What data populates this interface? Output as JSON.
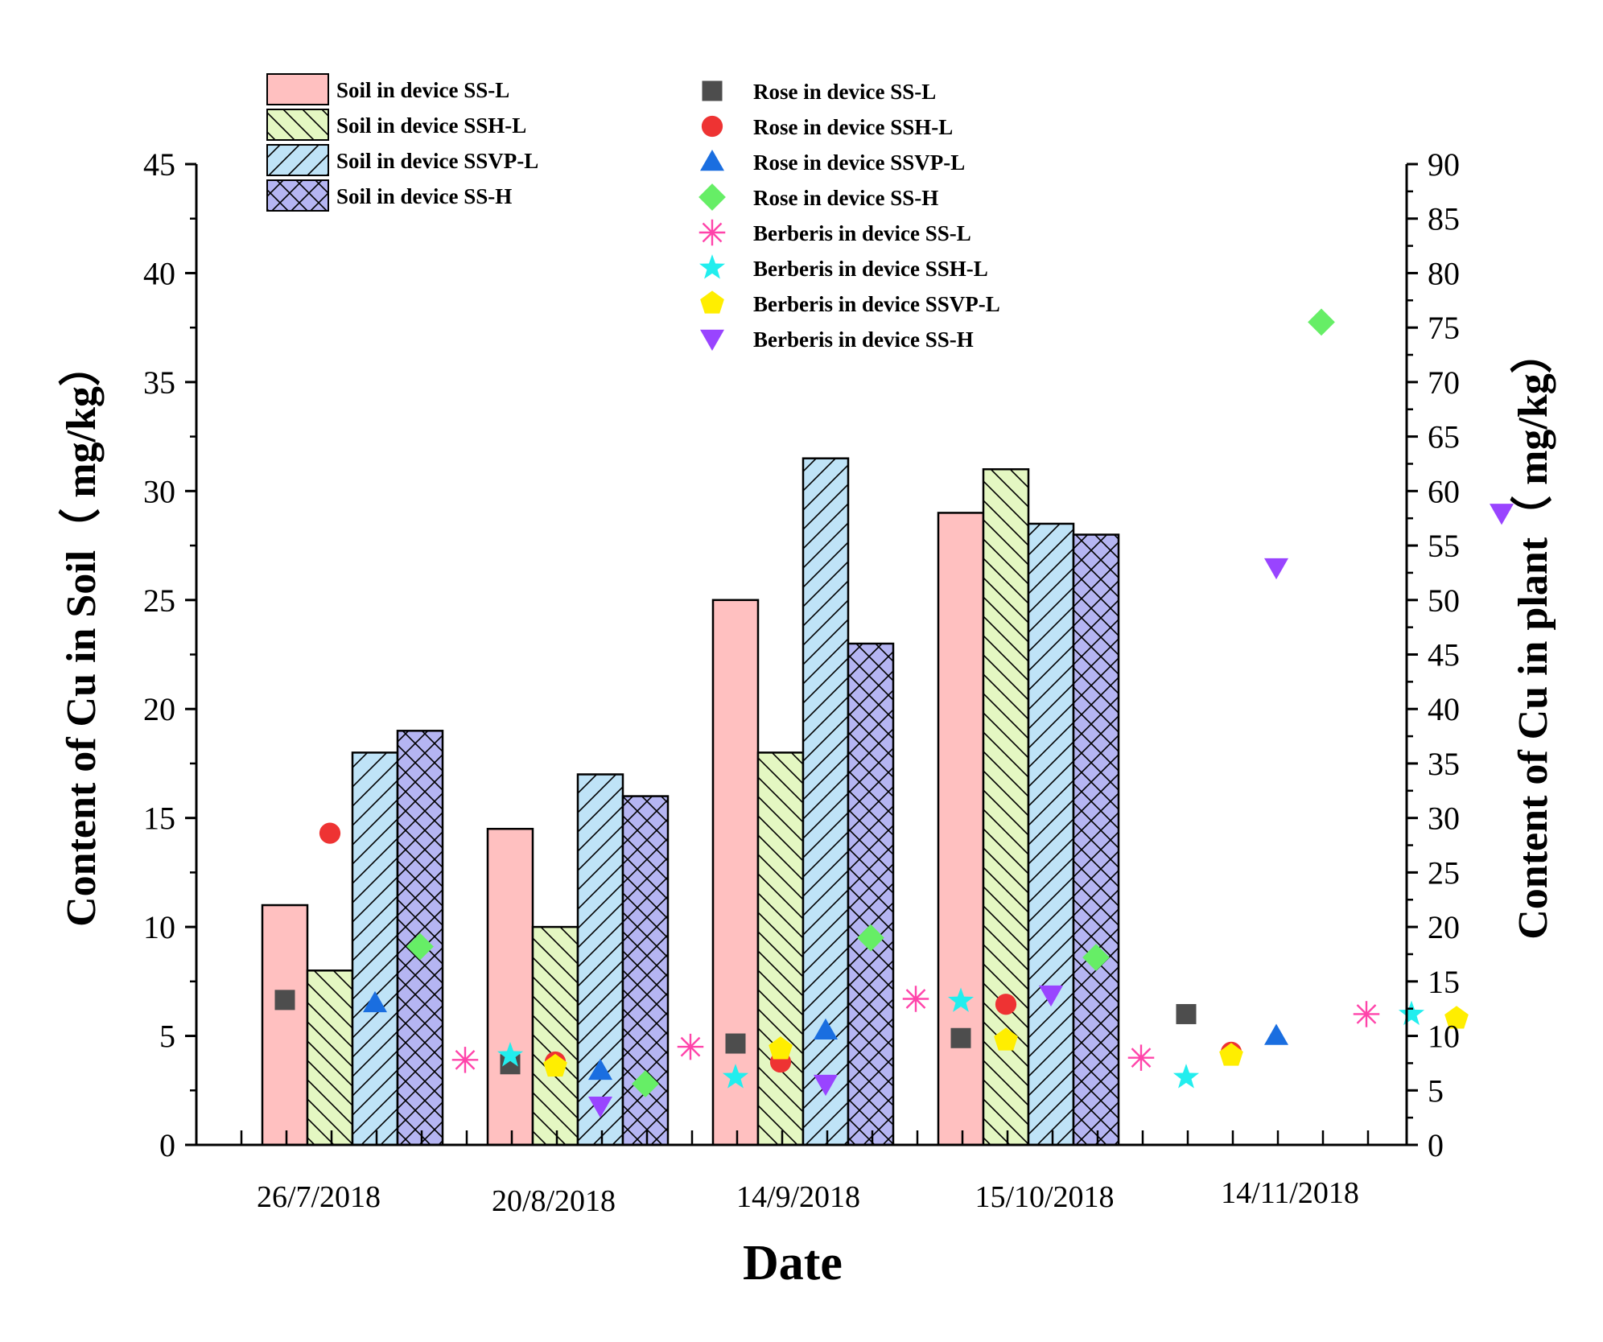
{
  "chart_data": {
    "type": "bar",
    "xlabel": "Date",
    "ylabel_left": "Content of Cu in Soil（ mg/kg）",
    "ylabel_right": "Content of Cu in plant（ mg/kg）",
    "ylim_left": [
      0,
      45
    ],
    "ylim_right": [
      0,
      90
    ],
    "yticks_left": [
      0,
      5,
      10,
      15,
      20,
      25,
      30,
      35,
      40,
      45
    ],
    "yticks_right": [
      0,
      5,
      10,
      15,
      20,
      25,
      30,
      35,
      40,
      45,
      50,
      55,
      60,
      65,
      70,
      75,
      80,
      85,
      90
    ],
    "categories": [
      "26/7/2018",
      "20/8/2018",
      "14/9/2018",
      "15/10/2018",
      "14/11/2018"
    ],
    "legend_position": "top",
    "bar_series": [
      {
        "name": "Soil in device SS-L",
        "axis": "left",
        "color": "#ffc0c0",
        "pattern": "none",
        "values": [
          11,
          14.5,
          25,
          29,
          null
        ]
      },
      {
        "name": "Soil in device SSH-L",
        "axis": "left",
        "color": "#e4f7c2",
        "pattern": "backslash",
        "values": [
          8,
          10,
          18,
          31,
          null
        ]
      },
      {
        "name": "Soil in device SSVP-L",
        "axis": "left",
        "color": "#bfe3f7",
        "pattern": "slash",
        "values": [
          18,
          17,
          31.5,
          28.5,
          null
        ]
      },
      {
        "name": "Soil in device SS-H",
        "axis": "left",
        "color": "#b5b5f2",
        "pattern": "cross",
        "values": [
          19,
          16,
          23,
          28,
          null
        ]
      }
    ],
    "scatter_series": [
      {
        "name": "Rose in device SS-L",
        "axis": "right",
        "color": "#4d4d4d",
        "marker": "square",
        "values": [
          13.3,
          7.4,
          9.3,
          9.8,
          12
        ]
      },
      {
        "name": "Rose in device SSH-L",
        "axis": "right",
        "color": "#ee3333",
        "marker": "circle",
        "values": [
          28.6,
          7.6,
          7.6,
          12.9,
          8.5
        ]
      },
      {
        "name": "Rose in device SSVP-L",
        "axis": "right",
        "color": "#1a6ee0",
        "marker": "triangle-up",
        "values": [
          13,
          6.8,
          10.5,
          null,
          10
        ]
      },
      {
        "name": "Rose in device SS-H",
        "axis": "right",
        "color": "#66ee66",
        "marker": "diamond",
        "values": [
          18.2,
          5.6,
          19,
          17.2,
          75.5
        ]
      },
      {
        "name": "Berberis in device SS-L",
        "axis": "right",
        "color": "#ff44aa",
        "marker": "asterisk",
        "values": [
          7.8,
          9,
          13.4,
          8,
          12
        ]
      },
      {
        "name": "Berberis in device SSH-L",
        "axis": "right",
        "color": "#22eeee",
        "marker": "star",
        "values": [
          8.2,
          6.2,
          13.2,
          6.2,
          12
        ]
      },
      {
        "name": "Berberis in device SSVP-L",
        "axis": "right",
        "color": "#ffee00",
        "marker": "pentagon",
        "values": [
          7.2,
          8.8,
          9.6,
          8.2,
          11.6
        ]
      },
      {
        "name": "Berberis in device SS-H",
        "axis": "right",
        "color": "#9944ff",
        "marker": "triangle-down",
        "values": [
          3.6,
          5.6,
          13.8,
          53,
          58
        ]
      }
    ]
  }
}
